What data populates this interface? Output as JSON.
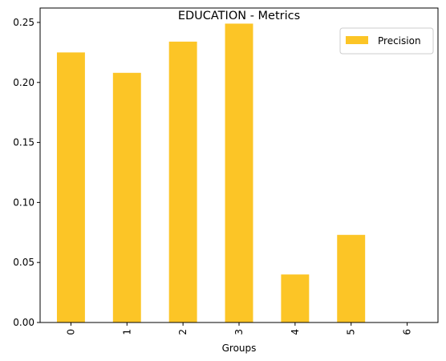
{
  "chart_data": {
    "type": "bar",
    "title": "EDUCATION - Metrics",
    "xlabel": "Groups",
    "ylabel": "",
    "categories": [
      "0",
      "1",
      "2",
      "3",
      "4",
      "5",
      "6"
    ],
    "series": [
      {
        "name": "Precision",
        "values": [
          0.225,
          0.208,
          0.234,
          0.249,
          0.04,
          0.073,
          0.0
        ],
        "color": "#fcc526"
      }
    ],
    "ylim": [
      0,
      0.262
    ],
    "yticks": [
      0.0,
      0.05,
      0.1,
      0.15,
      0.2,
      0.25
    ],
    "ytick_labels": [
      "0.00",
      "0.05",
      "0.10",
      "0.15",
      "0.20",
      "0.25"
    ],
    "xtick_rotation": "vertical",
    "grid": false,
    "legend_position": "upper right"
  }
}
